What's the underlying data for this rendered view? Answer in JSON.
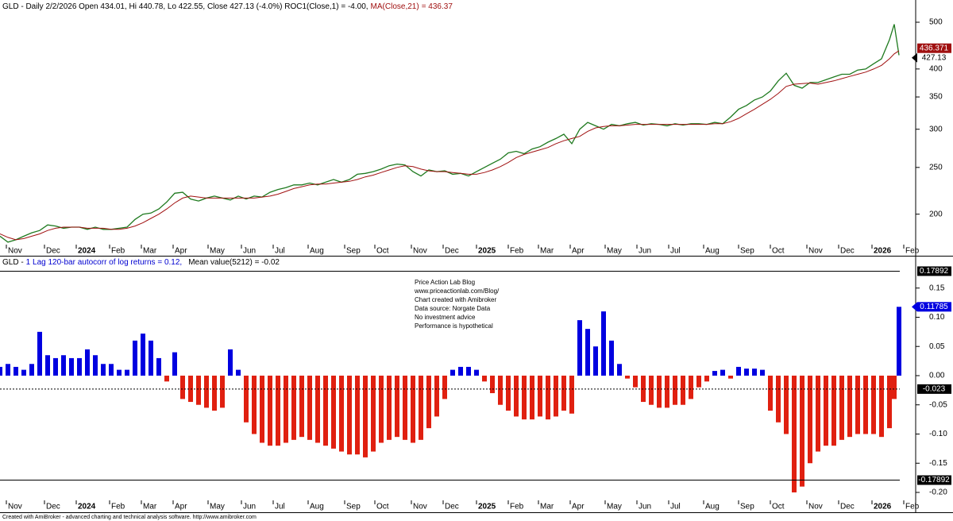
{
  "chart_data": [
    {
      "type": "line",
      "title": "GLD - Daily 2/2/2026 Open 434.01, Hi 440.78, Lo 422.55, Close 427.13 (-4.0%) ROC1(Close,1) = -4.00,",
      "ma_value": "= 436.37",
      "log": true,
      "xlim": [
        0,
        576
      ],
      "ylim": [
        164,
        556
      ],
      "yticks": [
        200,
        250,
        300,
        350,
        400,
        500
      ],
      "xticks": [
        {
          "value": 4,
          "label": "Nov"
        },
        {
          "value": 28,
          "label": "Dec"
        },
        {
          "value": 48,
          "label": "2024"
        },
        {
          "value": 69,
          "label": "Feb"
        },
        {
          "value": 89,
          "label": "Mar"
        },
        {
          "value": 109,
          "label": "Apr"
        },
        {
          "value": 131,
          "label": "May"
        },
        {
          "value": 152,
          "label": "Jun"
        },
        {
          "value": 172,
          "label": "Jul"
        },
        {
          "value": 194,
          "label": "Aug"
        },
        {
          "value": 217,
          "label": "Sep"
        },
        {
          "value": 236,
          "label": "Oct"
        },
        {
          "value": 259,
          "label": "Nov"
        },
        {
          "value": 279,
          "label": "Dec"
        },
        {
          "value": 300,
          "label": "2025"
        },
        {
          "value": 320,
          "label": "Feb"
        },
        {
          "value": 339,
          "label": "Mar"
        },
        {
          "value": 359,
          "label": "Apr"
        },
        {
          "value": 381,
          "label": "May"
        },
        {
          "value": 401,
          "label": "Jun"
        },
        {
          "value": 421,
          "label": "Jul"
        },
        {
          "value": 443,
          "label": "Aug"
        },
        {
          "value": 465,
          "label": "Sep"
        },
        {
          "value": 485,
          "label": "Oct"
        },
        {
          "value": 508,
          "label": "Nov"
        },
        {
          "value": 528,
          "label": "Dec"
        },
        {
          "value": 549,
          "label": "2026"
        },
        {
          "value": 569,
          "label": "Feb"
        }
      ],
      "x": [
        0,
        5,
        10,
        15,
        20,
        25,
        30,
        35,
        40,
        45,
        50,
        55,
        60,
        65,
        70,
        75,
        80,
        85,
        90,
        95,
        100,
        105,
        110,
        115,
        120,
        125,
        130,
        135,
        140,
        145,
        150,
        155,
        160,
        165,
        170,
        175,
        180,
        185,
        190,
        195,
        200,
        205,
        210,
        215,
        220,
        225,
        230,
        235,
        240,
        245,
        250,
        255,
        260,
        265,
        270,
        275,
        280,
        285,
        290,
        295,
        300,
        305,
        310,
        315,
        320,
        325,
        330,
        335,
        340,
        345,
        350,
        355,
        360,
        365,
        370,
        375,
        380,
        385,
        390,
        395,
        400,
        405,
        410,
        415,
        420,
        425,
        430,
        435,
        440,
        445,
        450,
        455,
        460,
        465,
        470,
        475,
        480,
        485,
        490,
        495,
        500,
        505,
        510,
        515,
        520,
        525,
        530,
        535,
        540,
        545,
        550,
        555,
        560,
        563,
        566
      ],
      "series": [
        {
          "name": "GLD",
          "color": "#1f7a1f",
          "last_label": "427.13",
          "label_color": "#000000",
          "values": [
            180,
            175,
            177,
            180,
            183,
            185,
            190,
            189,
            187,
            188,
            188,
            186,
            188,
            186,
            186,
            187,
            188,
            195,
            200,
            201,
            205,
            212,
            221,
            222,
            215,
            213,
            216,
            218,
            216,
            214,
            218,
            215,
            218,
            217,
            222,
            225,
            227,
            230,
            230,
            232,
            230,
            233,
            236,
            233,
            236,
            242,
            243,
            245,
            248,
            252,
            254,
            253,
            245,
            240,
            247,
            245,
            246,
            242,
            243,
            240,
            245,
            250,
            255,
            260,
            268,
            270,
            267,
            273,
            276,
            282,
            287,
            293,
            280,
            300,
            310,
            305,
            300,
            307,
            305,
            308,
            310,
            306,
            308,
            307,
            305,
            308,
            306,
            308,
            308,
            307,
            310,
            308,
            318,
            330,
            336,
            345,
            350,
            360,
            378,
            392,
            370,
            365,
            375,
            375,
            380,
            385,
            390,
            390,
            398,
            400,
            410,
            420,
            460,
            495,
            427.13
          ]
        },
        {
          "name": "MA(Close,21)",
          "color": "#a01010",
          "last_label": "436.371",
          "label_color": "#a01010",
          "values": [
            182,
            179,
            177,
            178,
            180,
            182,
            185,
            187,
            188,
            188,
            188,
            187,
            187,
            187,
            186,
            186,
            187,
            189,
            192,
            196,
            200,
            205,
            211,
            216,
            218,
            217,
            216,
            216,
            216,
            216,
            216,
            216,
            216,
            217,
            218,
            220,
            223,
            226,
            228,
            230,
            231,
            231,
            232,
            233,
            234,
            236,
            239,
            241,
            244,
            247,
            250,
            252,
            251,
            248,
            246,
            245,
            245,
            244,
            243,
            242,
            242,
            244,
            247,
            251,
            256,
            262,
            266,
            269,
            272,
            275,
            280,
            284,
            287,
            290,
            297,
            302,
            304,
            305,
            305,
            306,
            307,
            307,
            307,
            307,
            307,
            307,
            307,
            307,
            307,
            307,
            308,
            308,
            311,
            316,
            323,
            330,
            338,
            346,
            356,
            368,
            372,
            373,
            374,
            372,
            375,
            378,
            382,
            386,
            390,
            394,
            400,
            407,
            420,
            430,
            436.371
          ]
        }
      ]
    },
    {
      "type": "bar",
      "title": "GLD -",
      "indicator": "1 Lag 120-bar autocorr of log returns = 0.12,",
      "mean": "Mean value(5212) = -0.02",
      "indicator_color": "#0000d0",
      "positive_color": "#0000e0",
      "negative_color": "#e02010",
      "last_label_color": "#0000e0",
      "xlim": [
        0,
        576
      ],
      "ylim": [
        -0.234,
        0.204
      ],
      "yticks": [
        0.15,
        {
          "value": 0.1,
          "label": "0.10"
        },
        0.05,
        {
          "value": 0,
          "label": "0.00"
        },
        -0.05,
        {
          "value": -0.1,
          "label": "-0.10"
        },
        -0.15,
        {
          "value": -0.2,
          "label": "-0.20"
        }
      ],
      "hlines": [
        {
          "value": 0.17892,
          "label": "0.17892",
          "dashed": false
        },
        {
          "value": -0.023,
          "label": "-0.023",
          "dashed": true
        },
        {
          "value": -0.17892,
          "label": "-0.17892",
          "dashed": false
        }
      ],
      "annotation": [
        "Price Action Lab Blog",
        "www.priceactionlab.com/Blog/",
        "Chart created with Amibroker",
        "Data source: Norgate Data",
        "No investment advice",
        "Performance is hypothetical"
      ],
      "footer": "Created with AmiBroker - advanced charting and technical analysis software. http://www.amibroker.com",
      "xticks": [
        {
          "value": 4,
          "label": "Nov"
        },
        {
          "value": 28,
          "label": "Dec"
        },
        {
          "value": 48,
          "label": "2024"
        },
        {
          "value": 69,
          "label": "Feb"
        },
        {
          "value": 89,
          "label": "Mar"
        },
        {
          "value": 109,
          "label": "Apr"
        },
        {
          "value": 131,
          "label": "May"
        },
        {
          "value": 152,
          "label": "Jun"
        },
        {
          "value": 172,
          "label": "Jul"
        },
        {
          "value": 194,
          "label": "Aug"
        },
        {
          "value": 217,
          "label": "Sep"
        },
        {
          "value": 236,
          "label": "Oct"
        },
        {
          "value": 259,
          "label": "Nov"
        },
        {
          "value": 279,
          "label": "Dec"
        },
        {
          "value": 300,
          "label": "2025"
        },
        {
          "value": 320,
          "label": "Feb"
        },
        {
          "value": 339,
          "label": "Mar"
        },
        {
          "value": 359,
          "label": "Apr"
        },
        {
          "value": 381,
          "label": "May"
        },
        {
          "value": 401,
          "label": "Jun"
        },
        {
          "value": 421,
          "label": "Jul"
        },
        {
          "value": 443,
          "label": "Aug"
        },
        {
          "value": 465,
          "label": "Sep"
        },
        {
          "value": 485,
          "label": "Oct"
        },
        {
          "value": 508,
          "label": "Nov"
        },
        {
          "value": 528,
          "label": "Dec"
        },
        {
          "value": 549,
          "label": "2026"
        },
        {
          "value": 569,
          "label": "Feb"
        }
      ],
      "x": [
        0,
        5,
        10,
        15,
        20,
        25,
        30,
        35,
        40,
        45,
        50,
        55,
        60,
        65,
        70,
        75,
        80,
        85,
        90,
        95,
        100,
        105,
        110,
        115,
        120,
        125,
        130,
        135,
        140,
        145,
        150,
        155,
        160,
        165,
        170,
        175,
        180,
        185,
        190,
        195,
        200,
        205,
        210,
        215,
        220,
        225,
        230,
        235,
        240,
        245,
        250,
        255,
        260,
        265,
        270,
        275,
        280,
        285,
        290,
        295,
        300,
        305,
        310,
        315,
        320,
        325,
        330,
        335,
        340,
        345,
        350,
        355,
        360,
        365,
        370,
        375,
        380,
        385,
        390,
        395,
        400,
        405,
        410,
        415,
        420,
        425,
        430,
        435,
        440,
        445,
        450,
        455,
        460,
        465,
        470,
        475,
        480,
        485,
        490,
        495,
        500,
        505,
        510,
        515,
        520,
        525,
        530,
        535,
        540,
        545,
        550,
        555,
        560,
        563,
        566
      ],
      "values": [
        0.015,
        0.02,
        0.015,
        0.01,
        0.02,
        0.075,
        0.035,
        0.03,
        0.035,
        0.03,
        0.03,
        0.045,
        0.035,
        0.02,
        0.02,
        0.01,
        0.01,
        0.06,
        0.072,
        0.06,
        0.03,
        -0.01,
        0.04,
        -0.04,
        -0.045,
        -0.05,
        -0.055,
        -0.06,
        -0.055,
        0.045,
        0.01,
        -0.08,
        -0.1,
        -0.115,
        -0.12,
        -0.12,
        -0.115,
        -0.11,
        -0.105,
        -0.11,
        -0.115,
        -0.12,
        -0.125,
        -0.13,
        -0.135,
        -0.135,
        -0.14,
        -0.13,
        -0.115,
        -0.11,
        -0.105,
        -0.11,
        -0.115,
        -0.11,
        -0.09,
        -0.07,
        -0.04,
        0.01,
        0.015,
        0.015,
        0.01,
        -0.01,
        -0.03,
        -0.05,
        -0.06,
        -0.07,
        -0.075,
        -0.075,
        -0.07,
        -0.075,
        -0.07,
        -0.06,
        -0.065,
        0.095,
        0.08,
        0.05,
        0.11,
        0.06,
        0.02,
        -0.005,
        -0.02,
        -0.045,
        -0.05,
        -0.055,
        -0.055,
        -0.05,
        -0.05,
        -0.04,
        -0.02,
        -0.01,
        0.008,
        0.01,
        -0.005,
        0.015,
        0.012,
        0.012,
        0.01,
        -0.06,
        -0.08,
        -0.1,
        -0.2,
        -0.19,
        -0.15,
        -0.13,
        -0.12,
        -0.12,
        -0.11,
        -0.105,
        -0.1,
        -0.1,
        -0.1,
        -0.105,
        -0.09,
        -0.04,
        0.11785
      ]
    }
  ]
}
